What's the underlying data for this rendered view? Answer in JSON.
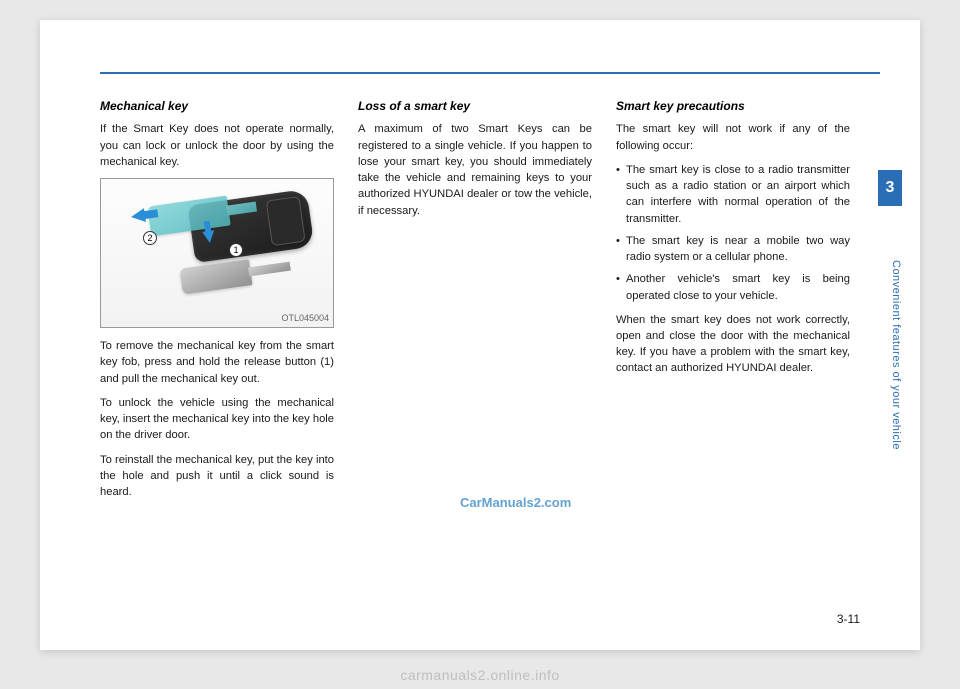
{
  "header": {
    "rule_color": "#2a6fb5"
  },
  "col1": {
    "heading": "Mechanical key",
    "p1": "If the Smart Key does not operate normally, you can lock or unlock the door by using the mechanical key.",
    "figure": {
      "code": "OTL045004",
      "callout1": "1",
      "callout2": "2"
    },
    "p2": "To remove the mechanical key from the smart key fob, press and hold the release button (1) and pull the mechanical key out.",
    "p3": "To unlock the vehicle using the mechanical key, insert the mechani­cal key into the key hole on the driv­er door.",
    "p4": "To reinstall the mechanical key, put the key into the hole and push it until a click sound is heard."
  },
  "col2": {
    "heading": "Loss of a smart key",
    "p1": "A maximum of two Smart Keys can be registered to a single vehicle. If you happen to lose your smart key, you should immediately take the vehicle and remaining keys to your authorized HYUNDAI dealer or tow the vehicle, if necessary."
  },
  "col3": {
    "heading": "Smart key precautions",
    "p1": "The smart key will not work if any of the following occur:",
    "bullets": [
      "The smart key is close to a radio transmitter such as a radio station or an airport which can interfere with normal operation of the trans­mitter.",
      "The smart key is near a mobile two way radio system or a cellular phone.",
      "Another vehicle's smart key is being operated close to your vehicle."
    ],
    "p2": "When the smart key does not work correctly, open and close the door with the mechanical key. If you have a problem with the smart key, contact an authorized HYUNDAI dealer."
  },
  "side": {
    "chapter": "3",
    "label": "Convenient features of your vehicle"
  },
  "page_number": "3-11",
  "watermarks": {
    "wm1": "CarManuals2.com",
    "footer": "carmanuals2.online.info"
  },
  "colors": {
    "accent": "#2a6fb5",
    "wm_blue": "#3a8cc9",
    "footer_gray": "#bfbfbf"
  }
}
